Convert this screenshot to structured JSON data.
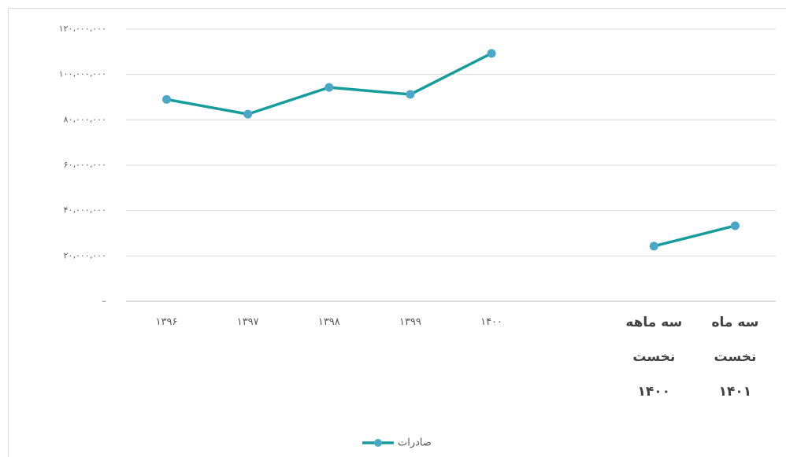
{
  "chart_data": {
    "type": "line",
    "categories": [
      "۱۳۹۶",
      "۱۳۹۷",
      "۱۳۹۸",
      "۱۳۹۹",
      "۱۴۰۰",
      null,
      "سه ماهه\nنخست\n۱۴۰۰",
      "سه ماه\nنخست\n۱۴۰۱"
    ],
    "series": [
      {
        "name": "صادرات",
        "color": "#179c9c",
        "marker_color": "#4ba6c8",
        "values": [
          89000000,
          82500000,
          94300000,
          91200000,
          109300000,
          null,
          24300000,
          33300000
        ]
      }
    ],
    "ylim": [
      0,
      120000000
    ],
    "yticks": [
      {
        "value": 0,
        "label": "–"
      },
      {
        "value": 20000000,
        "label": "۲۰،۰۰۰،۰۰۰"
      },
      {
        "value": 40000000,
        "label": "۴۰،۰۰۰،۰۰۰"
      },
      {
        "value": 60000000,
        "label": "۶۰،۰۰۰،۰۰۰"
      },
      {
        "value": 80000000,
        "label": "۸۰،۰۰۰،۰۰۰"
      },
      {
        "value": 100000000,
        "label": "۱۰۰،۰۰۰،۰۰۰"
      },
      {
        "value": 120000000,
        "label": "۱۲۰،۰۰۰،۰۰۰"
      }
    ],
    "grid": true,
    "legend": "bottom"
  }
}
